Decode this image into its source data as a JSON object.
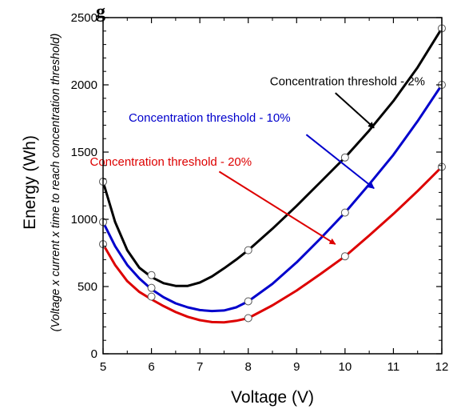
{
  "chart_data": {
    "type": "line",
    "xlabel": "Voltage (V)",
    "ylabel": "Energy (Wh)",
    "ylabel_sub": "(Voltage x current x time to reach concentration threshold)",
    "xlim": [
      5,
      12
    ],
    "ylim": [
      0,
      2500
    ],
    "x_ticks": [
      5,
      6,
      7,
      8,
      9,
      10,
      11,
      12
    ],
    "y_ticks": [
      0,
      500,
      1000,
      1500,
      2000,
      2500
    ],
    "grid": false,
    "partial_title_text": "g",
    "series": [
      {
        "color": "#000000",
        "points": [
          [
            5,
            1280
          ],
          [
            6,
            585
          ],
          [
            8,
            770
          ],
          [
            10,
            1460
          ],
          [
            12,
            2420
          ]
        ],
        "curve": [
          [
            5,
            1280
          ],
          [
            5.25,
            980
          ],
          [
            5.5,
            770
          ],
          [
            5.75,
            640
          ],
          [
            6,
            570
          ],
          [
            6.25,
            525
          ],
          [
            6.5,
            505
          ],
          [
            6.75,
            505
          ],
          [
            7,
            530
          ],
          [
            7.25,
            575
          ],
          [
            7.5,
            635
          ],
          [
            7.75,
            700
          ],
          [
            8,
            770
          ],
          [
            8.5,
            930
          ],
          [
            9,
            1100
          ],
          [
            9.5,
            1280
          ],
          [
            10,
            1460
          ],
          [
            10.5,
            1660
          ],
          [
            11,
            1880
          ],
          [
            11.5,
            2130
          ],
          [
            12,
            2420
          ]
        ]
      },
      {
        "color": "#0000cc",
        "points": [
          [
            5,
            980
          ],
          [
            6,
            490
          ],
          [
            8,
            390
          ],
          [
            10,
            1050
          ],
          [
            12,
            2000
          ]
        ],
        "curve": [
          [
            5,
            980
          ],
          [
            5.25,
            800
          ],
          [
            5.5,
            660
          ],
          [
            5.75,
            560
          ],
          [
            6,
            480
          ],
          [
            6.25,
            420
          ],
          [
            6.5,
            375
          ],
          [
            6.75,
            345
          ],
          [
            7,
            325
          ],
          [
            7.25,
            318
          ],
          [
            7.5,
            322
          ],
          [
            7.75,
            345
          ],
          [
            8,
            390
          ],
          [
            8.5,
            520
          ],
          [
            9,
            680
          ],
          [
            9.5,
            860
          ],
          [
            10,
            1050
          ],
          [
            10.5,
            1260
          ],
          [
            11,
            1480
          ],
          [
            11.5,
            1730
          ],
          [
            12,
            2000
          ]
        ]
      },
      {
        "color": "#dd0000",
        "points": [
          [
            5,
            815
          ],
          [
            6,
            425
          ],
          [
            8,
            265
          ],
          [
            10,
            725
          ],
          [
            12,
            1390
          ]
        ],
        "curve": [
          [
            5,
            815
          ],
          [
            5.25,
            660
          ],
          [
            5.5,
            540
          ],
          [
            5.75,
            460
          ],
          [
            6,
            405
          ],
          [
            6.25,
            355
          ],
          [
            6.5,
            310
          ],
          [
            6.75,
            275
          ],
          [
            7,
            250
          ],
          [
            7.25,
            236
          ],
          [
            7.5,
            234
          ],
          [
            7.75,
            245
          ],
          [
            8,
            265
          ],
          [
            8.5,
            360
          ],
          [
            9,
            470
          ],
          [
            9.5,
            595
          ],
          [
            10,
            725
          ],
          [
            10.5,
            880
          ],
          [
            11,
            1040
          ],
          [
            11.5,
            1210
          ],
          [
            12,
            1390
          ]
        ]
      }
    ],
    "annotations": [
      {
        "text": "Concentration threshold - 2%",
        "color": "#000000",
        "text_at": [
          10.05,
          1998
        ],
        "arrow_from": [
          9.8,
          1940
        ],
        "arrow_to": [
          10.6,
          1680
        ]
      },
      {
        "text": "Concentration threshold - 10%",
        "color": "#0000cc",
        "text_at": [
          7.2,
          1725
        ],
        "arrow_from": [
          9.2,
          1630
        ],
        "arrow_to": [
          10.6,
          1230
        ]
      },
      {
        "text": "Concentration threshold - 20%",
        "color": "#dd0000",
        "text_at": [
          6.4,
          1400
        ],
        "arrow_from": [
          7.4,
          1355
        ],
        "arrow_to": [
          9.8,
          815
        ]
      }
    ]
  }
}
